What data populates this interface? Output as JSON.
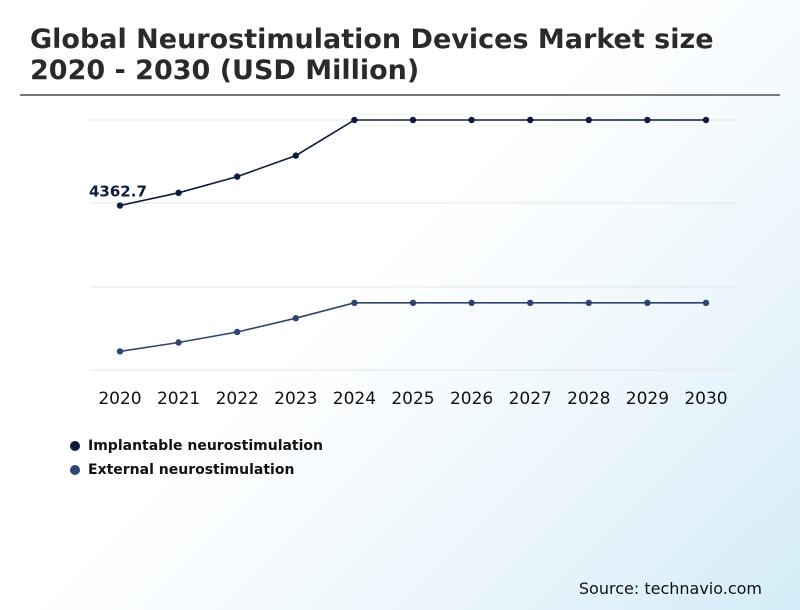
{
  "title": "Global Neurostimulation Devices Market size 2020 - 2030 (USD Million)",
  "source": "Source: technavio.com",
  "colors": {
    "implantable": "#0d1b3e",
    "external": "#2f4470",
    "grid": "#e6e6e6",
    "title_rule": "#7a7a7a"
  },
  "chart_data": {
    "type": "line",
    "title": "Global Neurostimulation Devices Market size 2020 - 2030 (USD Million)",
    "x": [
      "2020",
      "2021",
      "2022",
      "2023",
      "2024",
      "2025",
      "2026",
      "2027",
      "2028",
      "2029",
      "2030"
    ],
    "series": [
      {
        "name": "Implantable neurostimulation",
        "values": [
          4362.7,
          4520,
          4720,
          4980,
          5420,
          5420,
          5420,
          5420,
          5420,
          5420,
          5420
        ]
      },
      {
        "name": "External neurostimulation",
        "values": [
          2560,
          2670,
          2800,
          2970,
          3160,
          3160,
          3160,
          3160,
          3160,
          3160,
          3160
        ]
      }
    ],
    "annotations": [
      {
        "series": 0,
        "index": 0,
        "text": "4362.7"
      }
    ],
    "ylim": [
      2330,
      5420
    ],
    "grid": true,
    "yaxis_labels_shown": false,
    "legend_position": "bottom-left"
  }
}
